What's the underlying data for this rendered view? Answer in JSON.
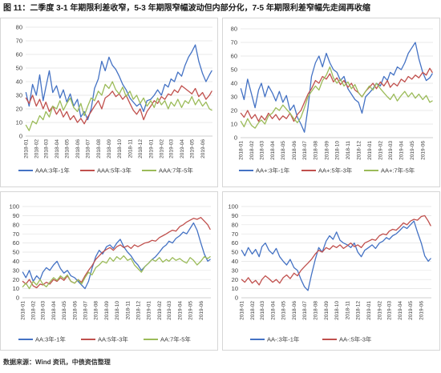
{
  "figure": {
    "title": "图 11：二季度 3-1 年期限利差收窄，5-3 年期限窄幅波动但内部分化，7-5 年期限利差窄幅先走阔再收缩",
    "source": "数据来源：Wind 资讯，中债资信整理"
  },
  "chart_data": [
    {
      "type": "line",
      "ylim": [
        0,
        80
      ],
      "yticks": [
        0,
        10,
        20,
        30,
        40,
        50,
        60,
        70,
        80
      ],
      "xticks": [
        "2018-01",
        "2018-02",
        "2018-03",
        "2018-04",
        "2018-05",
        "2018-06",
        "2018-07",
        "2018-08",
        "2018-09",
        "2018-10",
        "2018-11",
        "2018-12",
        "2019-01",
        "2019-02",
        "2019-03",
        "2019-04",
        "2019-05",
        "2019-06"
      ],
      "grid": true,
      "legend": "bottom",
      "x": [
        "2018-01-02",
        "2018-01-11",
        "2018-01-21",
        "2018-02-01",
        "2018-02-11",
        "2018-02-21",
        "2018-03-01",
        "2018-03-11",
        "2018-03-21",
        "2018-04-01",
        "2018-04-11",
        "2018-04-21",
        "2018-05-01",
        "2018-05-11",
        "2018-05-21",
        "2018-06-01",
        "2018-06-11",
        "2018-06-21",
        "2018-07-01",
        "2018-07-11",
        "2018-07-21",
        "2018-08-01",
        "2018-08-11",
        "2018-08-21",
        "2018-09-01",
        "2018-09-11",
        "2018-09-21",
        "2018-10-01",
        "2018-10-11",
        "2018-10-21",
        "2018-11-01",
        "2018-11-11",
        "2018-11-21",
        "2018-12-01",
        "2018-12-11",
        "2018-12-21",
        "2019-01-01",
        "2019-01-11",
        "2019-01-21",
        "2019-02-01",
        "2019-02-11",
        "2019-02-21",
        "2019-03-01",
        "2019-03-11",
        "2019-03-21",
        "2019-04-01",
        "2019-04-11",
        "2019-04-21",
        "2019-05-01",
        "2019-05-11",
        "2019-05-21",
        "2019-06-01",
        "2019-06-11",
        "2019-06-21",
        "2019-06-28"
      ],
      "series": [
        {
          "name": "AAA:3年-1年",
          "color": "#4472c4",
          "values": [
            32,
            22,
            38,
            30,
            45,
            26,
            36,
            48,
            32,
            37,
            28,
            34,
            25,
            31,
            22,
            27,
            14,
            18,
            12,
            20,
            35,
            42,
            55,
            48,
            58,
            52,
            49,
            44,
            38,
            34,
            28,
            25,
            22,
            24,
            18,
            26,
            27,
            30,
            34,
            30,
            38,
            36,
            42,
            40,
            47,
            44,
            52,
            58,
            62,
            67,
            55,
            46,
            40,
            45,
            48
          ]
        },
        {
          "name": "AAA:5年-3年",
          "color": "#c0504d",
          "values": [
            28,
            24,
            30,
            22,
            27,
            20,
            25,
            18,
            22,
            16,
            20,
            14,
            18,
            12,
            15,
            10,
            13,
            9,
            14,
            18,
            22,
            26,
            20,
            28,
            30,
            33,
            29,
            31,
            27,
            30,
            24,
            19,
            16,
            20,
            12,
            18,
            22,
            26,
            24,
            29,
            27,
            31,
            30,
            34,
            32,
            37,
            35,
            33,
            31,
            35,
            29,
            32,
            27,
            30,
            33
          ]
        },
        {
          "name": "AAA:7年-5年",
          "color": "#9bbb59",
          "values": [
            8,
            4,
            11,
            9,
            15,
            12,
            18,
            14,
            22,
            20,
            26,
            19,
            24,
            28,
            21,
            18,
            24,
            15,
            22,
            28,
            26,
            33,
            30,
            38,
            35,
            40,
            34,
            31,
            36,
            29,
            33,
            27,
            30,
            24,
            28,
            22,
            26,
            21,
            28,
            23,
            26,
            20,
            25,
            22,
            27,
            21,
            26,
            24,
            29,
            23,
            27,
            22,
            25,
            20,
            19
          ]
        }
      ]
    },
    {
      "type": "line",
      "ylim": [
        0,
        80
      ],
      "yticks": [
        0,
        10,
        20,
        30,
        40,
        50,
        60,
        70,
        80
      ],
      "xticks": [
        "2018-01",
        "2018-02",
        "2018-03",
        "2018-04",
        "2018-05",
        "2018-06",
        "2018-07",
        "2018-08",
        "2018-09",
        "2018-10",
        "2018-11",
        "2018-12",
        "2019-01",
        "2019-02",
        "2019-03",
        "2019-04",
        "2019-05",
        "2019-06"
      ],
      "grid": true,
      "legend": "bottom",
      "x": [
        "2018-01-02",
        "2018-01-11",
        "2018-01-21",
        "2018-02-01",
        "2018-02-11",
        "2018-02-21",
        "2018-03-01",
        "2018-03-11",
        "2018-03-21",
        "2018-04-01",
        "2018-04-11",
        "2018-04-21",
        "2018-05-01",
        "2018-05-11",
        "2018-05-21",
        "2018-06-01",
        "2018-06-11",
        "2018-06-21",
        "2018-07-01",
        "2018-07-11",
        "2018-07-21",
        "2018-08-01",
        "2018-08-11",
        "2018-08-21",
        "2018-09-01",
        "2018-09-11",
        "2018-09-21",
        "2018-10-01",
        "2018-10-11",
        "2018-10-21",
        "2018-11-01",
        "2018-11-11",
        "2018-11-21",
        "2018-12-01",
        "2018-12-11",
        "2018-12-21",
        "2019-01-01",
        "2019-01-11",
        "2019-01-21",
        "2019-02-01",
        "2019-02-11",
        "2019-02-21",
        "2019-03-01",
        "2019-03-11",
        "2019-03-21",
        "2019-04-01",
        "2019-04-11",
        "2019-04-21",
        "2019-05-01",
        "2019-05-11",
        "2019-05-21",
        "2019-06-01",
        "2019-06-11",
        "2019-06-21",
        "2019-06-28"
      ],
      "series": [
        {
          "name": "AA+:3年-1年",
          "color": "#4472c4",
          "values": [
            36,
            28,
            43,
            32,
            22,
            35,
            40,
            30,
            38,
            33,
            27,
            34,
            26,
            31,
            20,
            24,
            15,
            10,
            4,
            22,
            45,
            55,
            60,
            52,
            62,
            55,
            50,
            48,
            42,
            45,
            36,
            32,
            28,
            26,
            18,
            30,
            33,
            36,
            40,
            38,
            45,
            42,
            48,
            46,
            52,
            50,
            55,
            62,
            66,
            70,
            58,
            48,
            42,
            44,
            47
          ]
        },
        {
          "name": "AA+:5年-3年",
          "color": "#c0504d",
          "values": [
            18,
            15,
            20,
            14,
            17,
            12,
            16,
            13,
            18,
            14,
            17,
            13,
            16,
            14,
            18,
            12,
            17,
            20,
            26,
            32,
            36,
            42,
            40,
            45,
            43,
            47,
            41,
            44,
            39,
            42,
            37,
            40,
            35,
            33,
            30,
            34,
            37,
            40,
            36,
            41,
            38,
            42,
            37,
            40,
            38,
            43,
            41,
            45,
            43,
            46,
            44,
            48,
            46,
            51,
            48
          ]
        },
        {
          "name": "AA+:7年-5年",
          "color": "#9bbb59",
          "values": [
            12,
            8,
            14,
            9,
            7,
            11,
            13,
            10,
            16,
            18,
            22,
            20,
            24,
            21,
            18,
            14,
            11,
            15,
            22,
            30,
            34,
            38,
            35,
            42,
            46,
            52,
            44,
            40,
            43,
            38,
            41,
            36,
            39,
            33,
            30,
            34,
            38,
            35,
            40,
            36,
            33,
            30,
            28,
            32,
            27,
            31,
            34,
            30,
            33,
            29,
            32,
            28,
            31,
            26,
            27
          ]
        }
      ]
    },
    {
      "type": "line",
      "ylim": [
        0,
        100
      ],
      "yticks": [
        0,
        10,
        20,
        30,
        40,
        50,
        60,
        70,
        80,
        90,
        100
      ],
      "xticks": [
        "2018-01",
        "2018-02",
        "2018-03",
        "2018-04",
        "2018-05",
        "2018-06",
        "2018-07",
        "2018-08",
        "2018-09",
        "2018-10",
        "2018-11",
        "2018-12",
        "2019-01",
        "2019-02",
        "2019-03",
        "2019-04",
        "2019-05",
        "2019-06"
      ],
      "grid": true,
      "legend": "bottom",
      "x": [
        "2018-01-02",
        "2018-01-11",
        "2018-01-21",
        "2018-02-01",
        "2018-02-11",
        "2018-02-21",
        "2018-03-01",
        "2018-03-11",
        "2018-03-21",
        "2018-04-01",
        "2018-04-11",
        "2018-04-21",
        "2018-05-01",
        "2018-05-11",
        "2018-05-21",
        "2018-06-01",
        "2018-06-11",
        "2018-06-21",
        "2018-07-01",
        "2018-07-11",
        "2018-07-21",
        "2018-08-01",
        "2018-08-11",
        "2018-08-21",
        "2018-09-01",
        "2018-09-11",
        "2018-09-21",
        "2018-10-01",
        "2018-10-11",
        "2018-10-21",
        "2018-11-01",
        "2018-11-11",
        "2018-11-21",
        "2018-12-01",
        "2018-12-11",
        "2018-12-21",
        "2019-01-01",
        "2019-01-11",
        "2019-01-21",
        "2019-02-01",
        "2019-02-11",
        "2019-02-21",
        "2019-03-01",
        "2019-03-11",
        "2019-03-21",
        "2019-04-01",
        "2019-04-11",
        "2019-04-21",
        "2019-05-01",
        "2019-05-11",
        "2019-05-21",
        "2019-06-01",
        "2019-06-11",
        "2019-06-21",
        "2019-06-28"
      ],
      "series": [
        {
          "name": "AA:3年-1年",
          "color": "#4472c4",
          "values": [
            28,
            22,
            30,
            18,
            24,
            20,
            28,
            33,
            30,
            36,
            40,
            32,
            27,
            30,
            24,
            22,
            18,
            14,
            10,
            18,
            32,
            45,
            52,
            48,
            56,
            58,
            54,
            60,
            64,
            56,
            50,
            46,
            40,
            36,
            30,
            34,
            38,
            42,
            45,
            50,
            55,
            58,
            62,
            60,
            65,
            68,
            72,
            70,
            76,
            82,
            74,
            60,
            48,
            40,
            42
          ]
        },
        {
          "name": "AA:5年-3年",
          "color": "#c0504d",
          "values": [
            18,
            15,
            20,
            13,
            11,
            15,
            14,
            17,
            15,
            20,
            18,
            22,
            19,
            24,
            18,
            16,
            20,
            17,
            24,
            30,
            35,
            42,
            46,
            50,
            53,
            55,
            52,
            56,
            58,
            55,
            57,
            54,
            58,
            56,
            58,
            60,
            61,
            63,
            62,
            66,
            68,
            70,
            72,
            74,
            73,
            78,
            80,
            83,
            85,
            87,
            86,
            88,
            84,
            80,
            75
          ]
        },
        {
          "name": "AA:7年-5年",
          "color": "#9bbb59",
          "values": [
            12,
            16,
            10,
            18,
            14,
            20,
            15,
            12,
            17,
            22,
            19,
            24,
            21,
            25,
            18,
            16,
            20,
            15,
            22,
            28,
            25,
            33,
            36,
            40,
            38,
            44,
            40,
            45,
            42,
            46,
            41,
            43,
            36,
            32,
            28,
            34,
            38,
            42,
            40,
            44,
            39,
            42,
            40,
            44,
            41,
            43,
            40,
            38,
            44,
            41,
            36,
            40,
            45,
            43,
            45
          ]
        }
      ]
    },
    {
      "type": "line",
      "ylim": [
        0,
        100
      ],
      "yticks": [
        0,
        10,
        20,
        30,
        40,
        50,
        60,
        70,
        80,
        90,
        100
      ],
      "xticks": [
        "2018-01",
        "2018-02",
        "2018-03",
        "2018-04",
        "2018-05",
        "2018-06",
        "2018-07",
        "2018-08",
        "2018-09",
        "2018-10",
        "2018-11",
        "2018-12",
        "2019-01",
        "2019-02",
        "2019-03",
        "2019-04",
        "2019-05",
        "2019-06"
      ],
      "grid": true,
      "legend": "bottom",
      "x": [
        "2018-01-02",
        "2018-01-11",
        "2018-01-21",
        "2018-02-01",
        "2018-02-11",
        "2018-02-21",
        "2018-03-01",
        "2018-03-11",
        "2018-03-21",
        "2018-04-01",
        "2018-04-11",
        "2018-04-21",
        "2018-05-01",
        "2018-05-11",
        "2018-05-21",
        "2018-06-01",
        "2018-06-11",
        "2018-06-21",
        "2018-07-01",
        "2018-07-11",
        "2018-07-21",
        "2018-08-01",
        "2018-08-11",
        "2018-08-21",
        "2018-09-01",
        "2018-09-11",
        "2018-09-21",
        "2018-10-01",
        "2018-10-11",
        "2018-10-21",
        "2018-11-01",
        "2018-11-11",
        "2018-11-21",
        "2018-12-01",
        "2018-12-11",
        "2018-12-21",
        "2019-01-01",
        "2019-01-11",
        "2019-01-21",
        "2019-02-01",
        "2019-02-11",
        "2019-02-21",
        "2019-03-01",
        "2019-03-11",
        "2019-03-21",
        "2019-04-01",
        "2019-04-11",
        "2019-04-21",
        "2019-05-01",
        "2019-05-11",
        "2019-05-21",
        "2019-06-01",
        "2019-06-11",
        "2019-06-21",
        "2019-06-28"
      ],
      "series": [
        {
          "name": "AA-:3年-1年",
          "color": "#4472c4",
          "values": [
            52,
            46,
            55,
            48,
            53,
            45,
            56,
            60,
            52,
            48,
            54,
            45,
            40,
            36,
            42,
            33,
            30,
            20,
            12,
            8,
            25,
            42,
            55,
            50,
            62,
            68,
            64,
            72,
            63,
            60,
            58,
            55,
            60,
            50,
            45,
            52,
            55,
            58,
            54,
            60,
            62,
            66,
            64,
            68,
            70,
            74,
            78,
            76,
            80,
            84,
            72,
            60,
            46,
            40,
            43
          ]
        },
        {
          "name": "AA-:5年-3年",
          "color": "#c0504d",
          "values": [
            20,
            17,
            22,
            16,
            19,
            14,
            20,
            24,
            21,
            17,
            20,
            16,
            22,
            25,
            21,
            27,
            24,
            30,
            34,
            38,
            42,
            48,
            52,
            50,
            55,
            53,
            57,
            55,
            58,
            54,
            57,
            60,
            56,
            58,
            55,
            60,
            62,
            64,
            63,
            68,
            70,
            69,
            73,
            75,
            74,
            78,
            82,
            80,
            84,
            86,
            85,
            89,
            90,
            84,
            79
          ]
        }
      ]
    }
  ]
}
